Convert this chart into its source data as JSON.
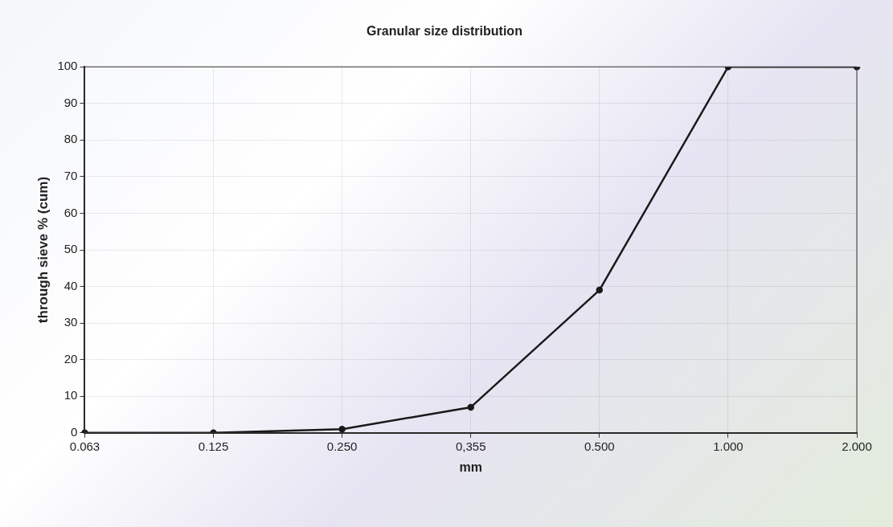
{
  "chart_data": {
    "type": "line",
    "title": "Granular size distribution",
    "xlabel": "mm",
    "ylabel": "through sieve % (cum)",
    "categories": [
      "0.063",
      "0.125",
      "0.250",
      "0,355",
      "0.500",
      "1.000",
      "2.000"
    ],
    "series": [
      {
        "color": "#1a1a1a",
        "values": [
          0,
          0,
          1,
          7,
          39,
          100,
          100
        ]
      }
    ],
    "ylim": [
      0,
      100
    ],
    "yticks": [
      0,
      10,
      20,
      30,
      40,
      50,
      60,
      70,
      80,
      90,
      100
    ],
    "grid": true,
    "legend": false,
    "marker": "circle",
    "line_style": "solid"
  }
}
